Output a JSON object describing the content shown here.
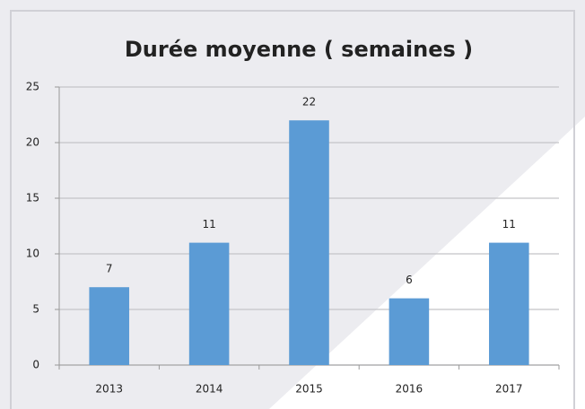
{
  "chart_data": {
    "type": "bar",
    "title": "Durée moyenne ( semaines )",
    "categories": [
      "2013",
      "2014",
      "2015",
      "2016",
      "2017"
    ],
    "values": [
      7,
      11,
      22,
      6,
      11
    ],
    "color": "#5b9bd5",
    "ylim": [
      0,
      25
    ],
    "yticks": [
      0,
      5,
      10,
      15,
      20,
      25
    ],
    "grid": true
  }
}
